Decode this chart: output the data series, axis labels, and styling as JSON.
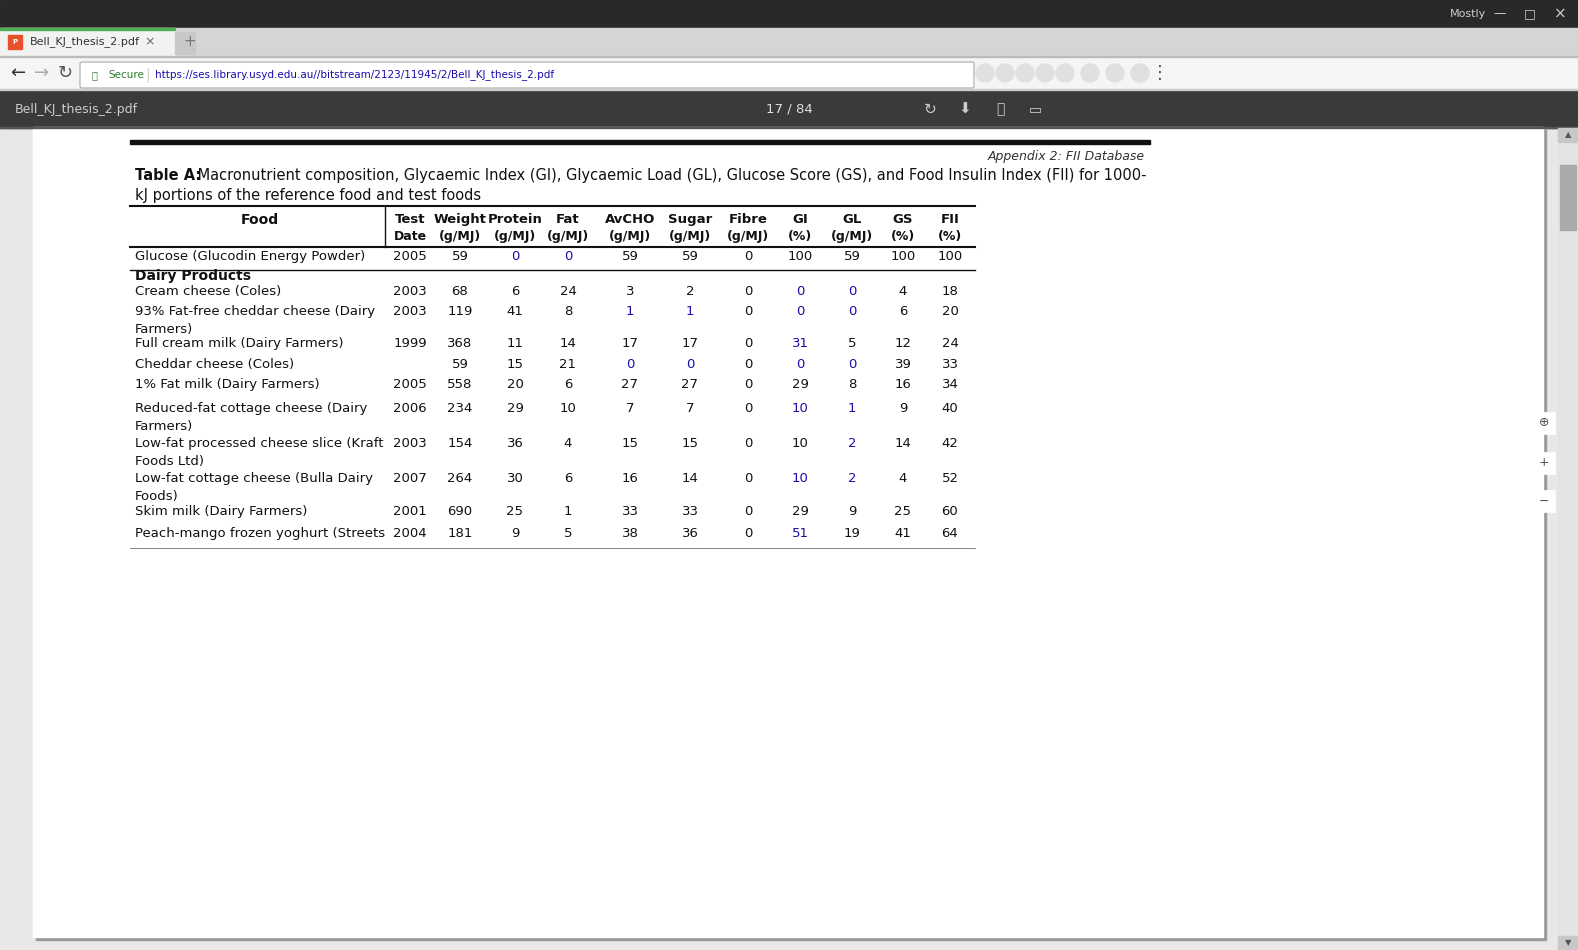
{
  "bg_color": "#e8e8e8",
  "title_bold": "Table A:",
  "title_rest": " Macronutrient composition, Glycaemic Index (GI), Glycaemic Load (GL), Glucose Score (GS), and Food Insulin Index (FII) for 1000-",
  "title_line2": "kJ portions of the reference food and test foods",
  "col_headers_line1": [
    "Food",
    "Test",
    "Weight",
    "Protein",
    "Fat",
    "AvCHO",
    "Sugar",
    "Fibre",
    "GI",
    "GL",
    "GS",
    "FII"
  ],
  "col_headers_line2": [
    "",
    "Date",
    "(g/MJ)",
    "(g/MJ)",
    "(g/MJ)",
    "(g/MJ)",
    "(g/MJ)",
    "(g/MJ)",
    "(%)",
    "(g/MJ)",
    "(%)",
    "(%)"
  ],
  "rows": [
    [
      "Glucose (Glucodin Energy Powder)",
      "2005",
      "59",
      "0",
      "0",
      "59",
      "59",
      "0",
      "100",
      "59",
      "100",
      "100"
    ],
    [
      "Dairy Products",
      "",
      "",
      "",
      "",
      "",
      "",
      "",
      "",
      "",
      "",
      ""
    ],
    [
      "Cream cheese (Coles)",
      "2003",
      "68",
      "6",
      "24",
      "3",
      "2",
      "0",
      "0",
      "0",
      "4",
      "18"
    ],
    [
      "93% Fat-free cheddar cheese (Dairy\nFarmers)",
      "2003",
      "119",
      "41",
      "8",
      "1",
      "1",
      "0",
      "0",
      "0",
      "6",
      "20"
    ],
    [
      "Full cream milk (Dairy Farmers)",
      "1999",
      "368",
      "11",
      "14",
      "17",
      "17",
      "0",
      "31",
      "5",
      "12",
      "24"
    ],
    [
      "Cheddar cheese (Coles)",
      "",
      "59",
      "15",
      "21",
      "0",
      "0",
      "0",
      "0",
      "0",
      "39",
      "33"
    ],
    [
      "1% Fat milk (Dairy Farmers)",
      "2005",
      "558",
      "20",
      "6",
      "27",
      "27",
      "0",
      "29",
      "8",
      "16",
      "34"
    ],
    [
      "Reduced-fat cottage cheese (Dairy\nFarmers)",
      "2006",
      "234",
      "29",
      "10",
      "7",
      "7",
      "0",
      "10",
      "1",
      "9",
      "40"
    ],
    [
      "Low-fat processed cheese slice (Kraft\nFoods Ltd)",
      "2003",
      "154",
      "36",
      "4",
      "15",
      "15",
      "0",
      "10",
      "2",
      "14",
      "42"
    ],
    [
      "Low-fat cottage cheese (Bulla Dairy\nFoods)",
      "2007",
      "264",
      "30",
      "6",
      "16",
      "14",
      "0",
      "10",
      "2",
      "4",
      "52"
    ],
    [
      "Skim milk (Dairy Farmers)",
      "2001",
      "690",
      "25",
      "1",
      "33",
      "33",
      "0",
      "29",
      "9",
      "25",
      "60"
    ],
    [
      "Peach-mango frozen yoghurt (Streets",
      "2004",
      "181",
      "9",
      "5",
      "38",
      "36",
      "0",
      "51",
      "19",
      "41",
      "64"
    ]
  ],
  "blue_cells": {
    "0": [
      3,
      4
    ],
    "2": [
      8,
      9
    ],
    "3": [
      5,
      6,
      8,
      9
    ],
    "4": [
      8
    ],
    "5": [
      5,
      6,
      8,
      9
    ],
    "6": [],
    "7": [
      8,
      9
    ],
    "8": [
      9
    ],
    "9": [
      8,
      9
    ],
    "10": [],
    "11": [
      8
    ]
  },
  "appendix_text": "Appendix 2: FII Database",
  "url_text": "https://ses.library.usyd.edu.au//bitstream/2123/11945/2/Bell_KJ_thesis_2.pdf",
  "page_text": "17 / 84",
  "tab_title": "Bell_KJ_thesis_2.pdf",
  "browser_title_right": "Mostly"
}
